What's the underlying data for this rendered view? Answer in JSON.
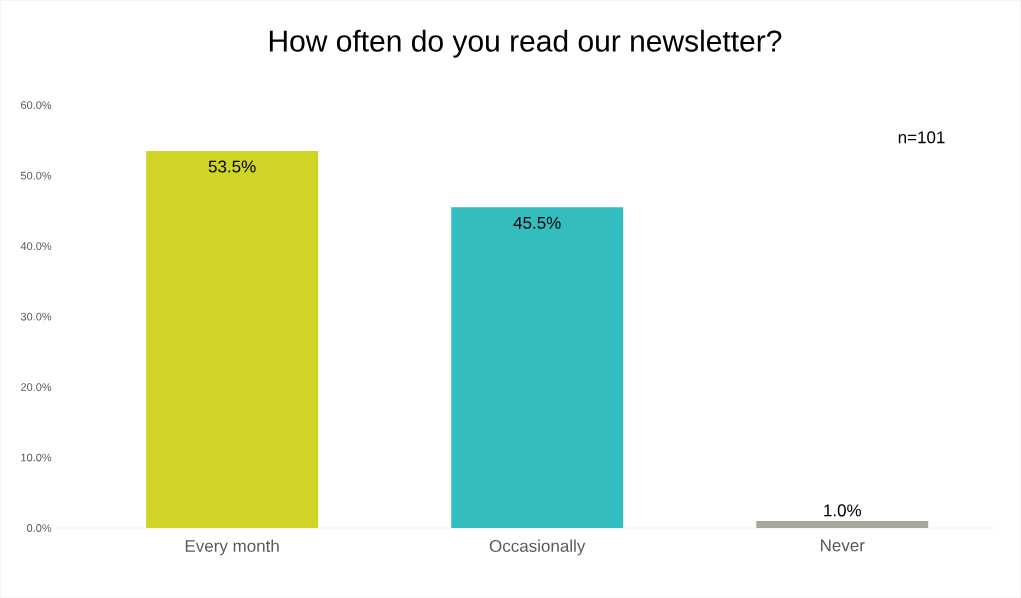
{
  "chart_data": {
    "type": "bar",
    "title": "How often do you read our newsletter?",
    "categories": [
      "Every month",
      "Occasionally",
      "Never"
    ],
    "values": [
      53.5,
      45.5,
      1.0
    ],
    "colors": [
      "#cfd426",
      "#33bdbf",
      "#a5a79a"
    ],
    "value_labels": [
      "53.5%",
      "45.5%",
      "1.0%"
    ],
    "ylim": [
      0,
      60
    ],
    "yticks": [
      {
        "value": 0,
        "label": "0.0%"
      },
      {
        "value": 10,
        "label": "10.0%"
      },
      {
        "value": 20,
        "label": "20.0%"
      },
      {
        "value": 30,
        "label": "30.0%"
      },
      {
        "value": 40,
        "label": "40.0%"
      },
      {
        "value": 50,
        "label": "50.0%"
      },
      {
        "value": 60,
        "label": "60.0%"
      }
    ],
    "annotations": [
      "n=101"
    ]
  }
}
